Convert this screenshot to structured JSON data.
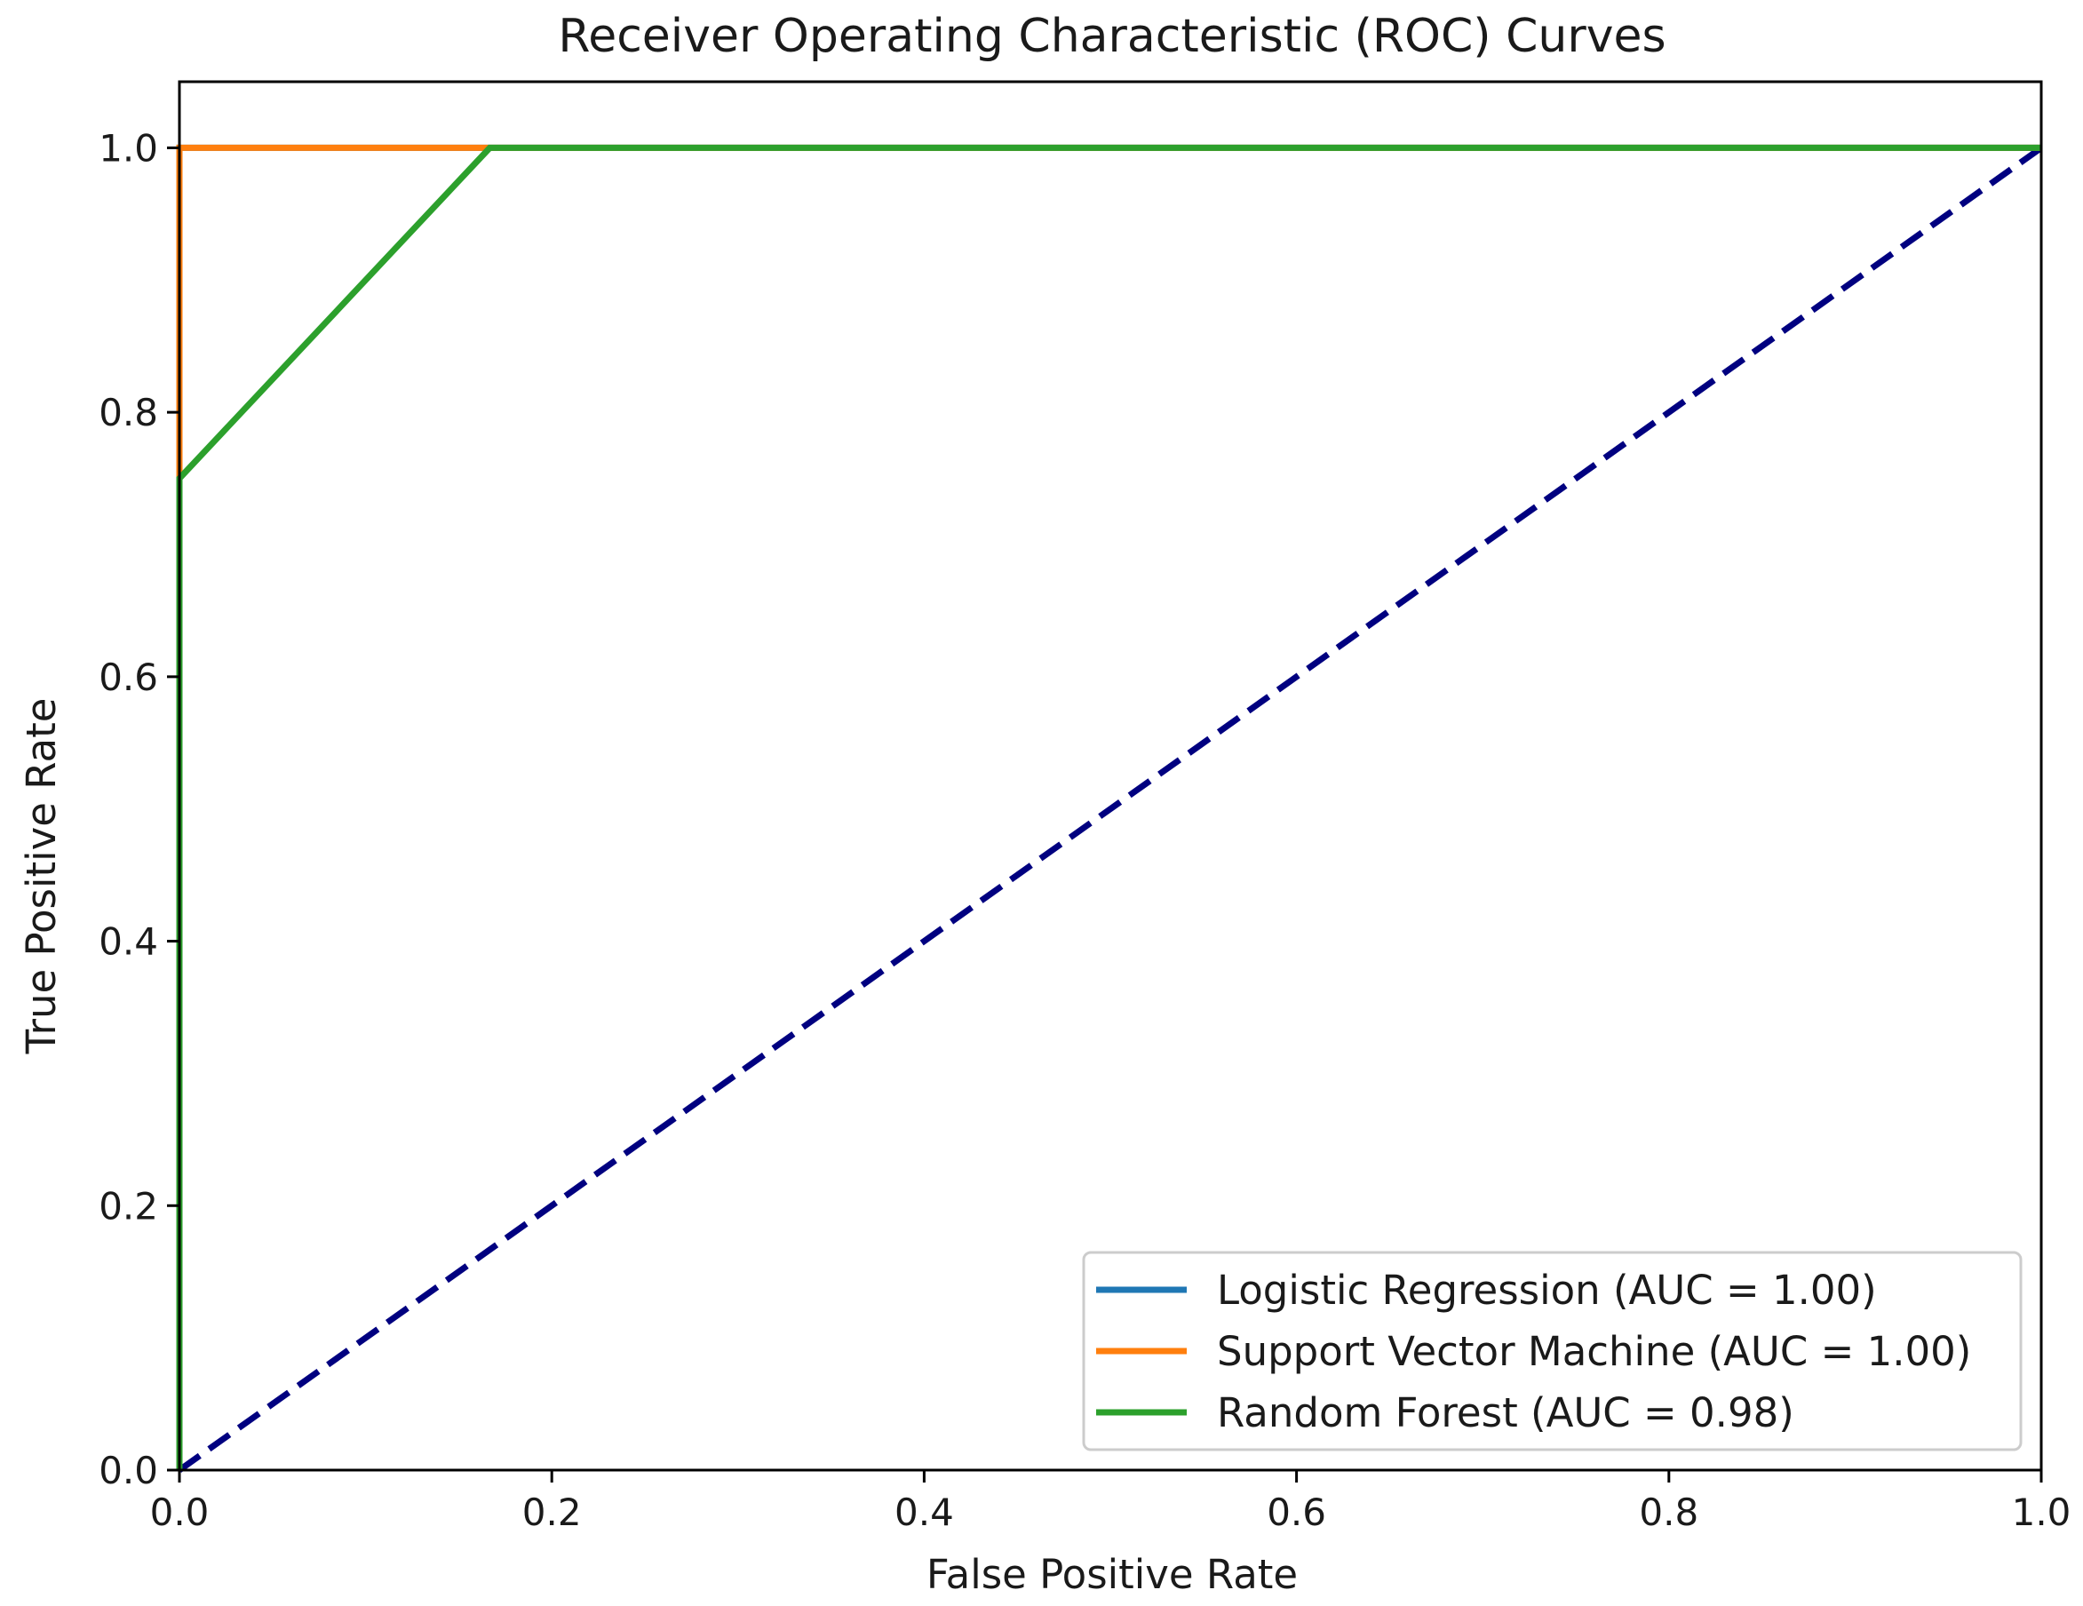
{
  "chart_data": {
    "type": "line",
    "title": "Receiver Operating Characteristic (ROC) Curves",
    "xlabel": "False Positive Rate",
    "ylabel": "True Positive Rate",
    "xlim": [
      0.0,
      1.0
    ],
    "ylim": [
      0.0,
      1.05
    ],
    "x_ticks": [
      "0.0",
      "0.2",
      "0.4",
      "0.6",
      "0.8",
      "1.0"
    ],
    "y_ticks": [
      "0.0",
      "0.2",
      "0.4",
      "0.6",
      "0.8",
      "1.0"
    ],
    "grid": false,
    "legend_position": "lower-right",
    "series": [
      {
        "name": "Logistic Regression (AUC = 1.00)",
        "color": "#1f77b4",
        "x": [
          0.0,
          0.0,
          1.0
        ],
        "y": [
          0.0,
          1.0,
          1.0
        ]
      },
      {
        "name": "Support Vector Machine (AUC = 1.00)",
        "color": "#ff7f0e",
        "x": [
          0.0,
          0.0,
          1.0
        ],
        "y": [
          0.0,
          1.0,
          1.0
        ]
      },
      {
        "name": "Random Forest (AUC = 0.98)",
        "color": "#2ca02c",
        "x": [
          0.0,
          0.0,
          0.1667,
          1.0
        ],
        "y": [
          0.0,
          0.75,
          1.0,
          1.0
        ]
      }
    ],
    "reference_line": {
      "color": "#000080",
      "style": "dashed",
      "x": [
        0.0,
        1.0
      ],
      "y": [
        0.0,
        1.0
      ]
    }
  }
}
